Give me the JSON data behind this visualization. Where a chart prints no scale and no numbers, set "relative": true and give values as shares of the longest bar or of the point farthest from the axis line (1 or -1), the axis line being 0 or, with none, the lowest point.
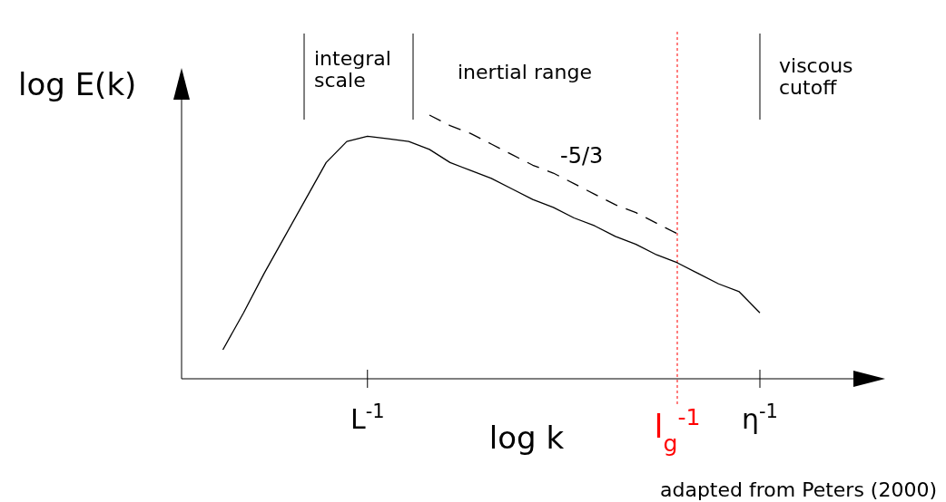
{
  "chart_data": {
    "type": "line",
    "relative": true,
    "xlabel": "log k",
    "ylabel": "log E(k)",
    "categories": [
      null,
      null,
      null,
      null,
      null,
      null,
      null,
      null,
      null,
      "L$^{-1}$",
      null,
      null,
      null,
      null,
      null,
      null,
      null,
      null,
      null,
      null,
      null,
      null,
      null,
      null,
      "l$_{g}$$^{-1}$",
      null,
      null,
      null,
      "η$^{-1}$",
      null,
      null,
      null,
      null,
      null
    ],
    "series": [
      {
        "color": "#000000",
        "line_style": "solid",
        "values": [
          null,
          null,
          0.11,
          0.25,
          0.4,
          0.54,
          0.68,
          0.82,
          0.9,
          0.92,
          0.91,
          0.9,
          0.87,
          0.82,
          0.79,
          0.76,
          0.72,
          0.68,
          0.65,
          0.61,
          0.58,
          0.54,
          0.51,
          0.47,
          0.44,
          0.4,
          0.36,
          0.33,
          0.25,
          null,
          null,
          null,
          null,
          null
        ]
      },
      {
        "color": "#000000",
        "line_style": "dashed",
        "values": [
          null,
          null,
          null,
          null,
          null,
          null,
          null,
          null,
          null,
          null,
          null,
          null,
          1,
          0.96,
          0.93,
          0.89,
          0.85,
          0.81,
          0.78,
          0.74,
          0.7,
          0.66,
          0.63,
          0.59,
          0.55,
          null,
          null,
          null,
          null,
          null,
          null,
          null,
          null,
          null
        ]
      }
    ],
    "ref_lines": [
      {
        "axis": "x",
        "value": "l$_{g}$$^{-1}$",
        "color": "#ff0000",
        "line_style": "dotted"
      }
    ],
    "annotations": [
      "integral\nscale",
      "inertial range",
      "viscous\ncutoff",
      "-5/3",
      "adapted from Peters (2000)"
    ]
  }
}
